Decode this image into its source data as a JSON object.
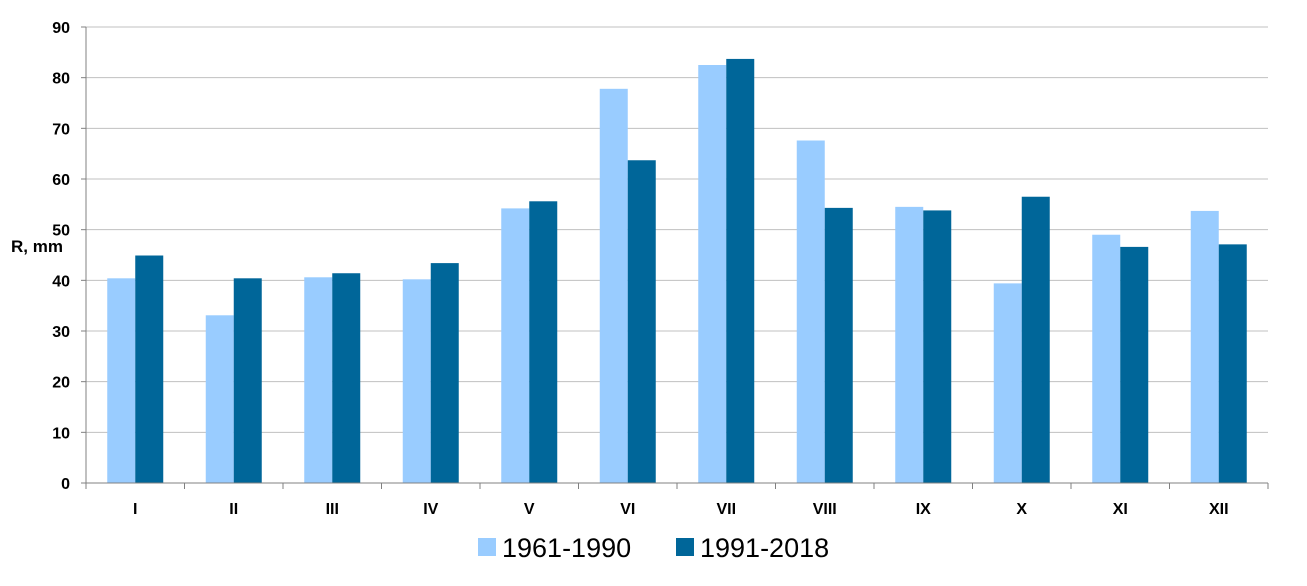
{
  "chart_data": {
    "type": "bar",
    "title": "",
    "xlabel": "",
    "ylabel": "R, mm",
    "ylim": [
      0,
      90
    ],
    "yticks": [
      0,
      10,
      20,
      30,
      40,
      50,
      60,
      70,
      80,
      90
    ],
    "categories": [
      "I",
      "II",
      "III",
      "IV",
      "V",
      "VI",
      "VII",
      "VIII",
      "IX",
      "X",
      "XI",
      "XII"
    ],
    "grid": true,
    "legend_position": "bottom",
    "series": [
      {
        "name": "1961-1990",
        "color": "#99ccff",
        "values": [
          40.4,
          33.1,
          40.6,
          40.2,
          54.2,
          77.8,
          82.5,
          67.6,
          54.5,
          39.4,
          49.0,
          53.7
        ]
      },
      {
        "name": "1991-2018",
        "color": "#006699",
        "values": [
          44.9,
          40.4,
          41.4,
          43.4,
          55.6,
          63.7,
          83.7,
          54.3,
          53.8,
          56.5,
          46.6,
          47.1
        ]
      }
    ]
  }
}
